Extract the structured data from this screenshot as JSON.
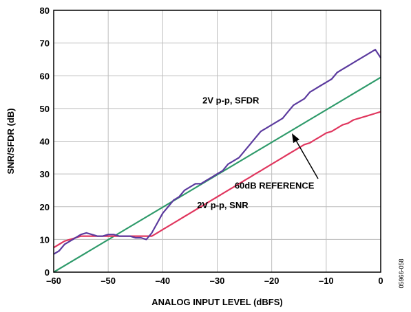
{
  "chart_data": {
    "type": "line",
    "title": "",
    "xlabel": "ANALOG INPUT LEVEL (dBFS)",
    "ylabel": "SNR/SFDR (dB)",
    "xlim": [
      -60,
      0
    ],
    "ylim": [
      0,
      80
    ],
    "xticks": [
      -60,
      -50,
      -40,
      -30,
      -20,
      -10,
      0
    ],
    "xtick_labels": [
      "–60",
      "–50",
      "–40",
      "–30",
      "–20",
      "–10",
      "0"
    ],
    "yticks": [
      0,
      10,
      20,
      30,
      40,
      50,
      60,
      70,
      80
    ],
    "ytick_labels": [
      "0",
      "10",
      "20",
      "30",
      "40",
      "50",
      "60",
      "70",
      "80"
    ],
    "grid": true,
    "figure_id": "05966-058",
    "series": [
      {
        "name": "2V p-p, SFDR",
        "color": "#5b3a9e",
        "x": [
          -60,
          -59,
          -58,
          -57,
          -56,
          -55,
          -54,
          -53,
          -52,
          -51,
          -50,
          -49,
          -48,
          -47,
          -46,
          -45,
          -44,
          -43,
          -42,
          -41,
          -40,
          -39,
          -38,
          -37,
          -36,
          -35,
          -34,
          -33,
          -32,
          -31,
          -30,
          -29,
          -28,
          -27,
          -26,
          -25,
          -24,
          -23,
          -22,
          -21,
          -20,
          -19,
          -18,
          -17,
          -16,
          -15,
          -14,
          -13,
          -12,
          -11,
          -10,
          -9,
          -8,
          -7,
          -6,
          -5,
          -4,
          -3,
          -2,
          -1,
          0
        ],
        "y": [
          5.5,
          6.5,
          8.5,
          9.5,
          10.5,
          11.5,
          12,
          11.5,
          11,
          11,
          11.5,
          11.5,
          11,
          11,
          11,
          10.5,
          10.5,
          10,
          12,
          15,
          18,
          20,
          22,
          23,
          25,
          26,
          27,
          27,
          28,
          29,
          30,
          31,
          33,
          34,
          35,
          37,
          39,
          41,
          43,
          44,
          45,
          46,
          47,
          49,
          51,
          52,
          53,
          55,
          56,
          57,
          58,
          59,
          61,
          62,
          63,
          64,
          65,
          66,
          67,
          68,
          65.5
        ]
      },
      {
        "name": "2V p-p, SNR",
        "color": "#e0365e",
        "x": [
          -60,
          -59,
          -58,
          -57,
          -56,
          -55,
          -54,
          -53,
          -52,
          -51,
          -50,
          -49,
          -48,
          -47,
          -46,
          -45,
          -44,
          -43,
          -42,
          -41,
          -40,
          -39,
          -38,
          -37,
          -36,
          -35,
          -34,
          -33,
          -32,
          -31,
          -30,
          -29,
          -28,
          -27,
          -26,
          -25,
          -24,
          -23,
          -22,
          -21,
          -20,
          -19,
          -18,
          -17,
          -16,
          -15,
          -14,
          -13,
          -12,
          -11,
          -10,
          -9,
          -8,
          -7,
          -6,
          -5,
          -4,
          -3,
          -2,
          -1,
          0
        ],
        "y": [
          7.5,
          8.5,
          9.5,
          10,
          10.5,
          11,
          11,
          11,
          11,
          11,
          11,
          11,
          11,
          11,
          11,
          11,
          11,
          11,
          11,
          12,
          13,
          14,
          15,
          16,
          17,
          18,
          19,
          20,
          21,
          22,
          23,
          24,
          25,
          26,
          27,
          28,
          29,
          30,
          31,
          32,
          33,
          34,
          35,
          36,
          37,
          38,
          39,
          39.5,
          40.5,
          41.5,
          42.5,
          43,
          44,
          45,
          45.5,
          46.5,
          47,
          47.5,
          48,
          48.5,
          49
        ]
      },
      {
        "name": "60dB REFERENCE",
        "color": "#2e9a6a",
        "x": [
          -60,
          0
        ],
        "y": [
          0,
          59.5
        ]
      }
    ],
    "annotations": [
      {
        "text": "2V p-p, SFDR",
        "x": -27.5,
        "y": 51.5
      },
      {
        "text": "2V p-p, SNR",
        "x": -29,
        "y": 19.5
      },
      {
        "text": "60dB REFERENCE",
        "x": -19.5,
        "y": 25.5
      }
    ]
  }
}
